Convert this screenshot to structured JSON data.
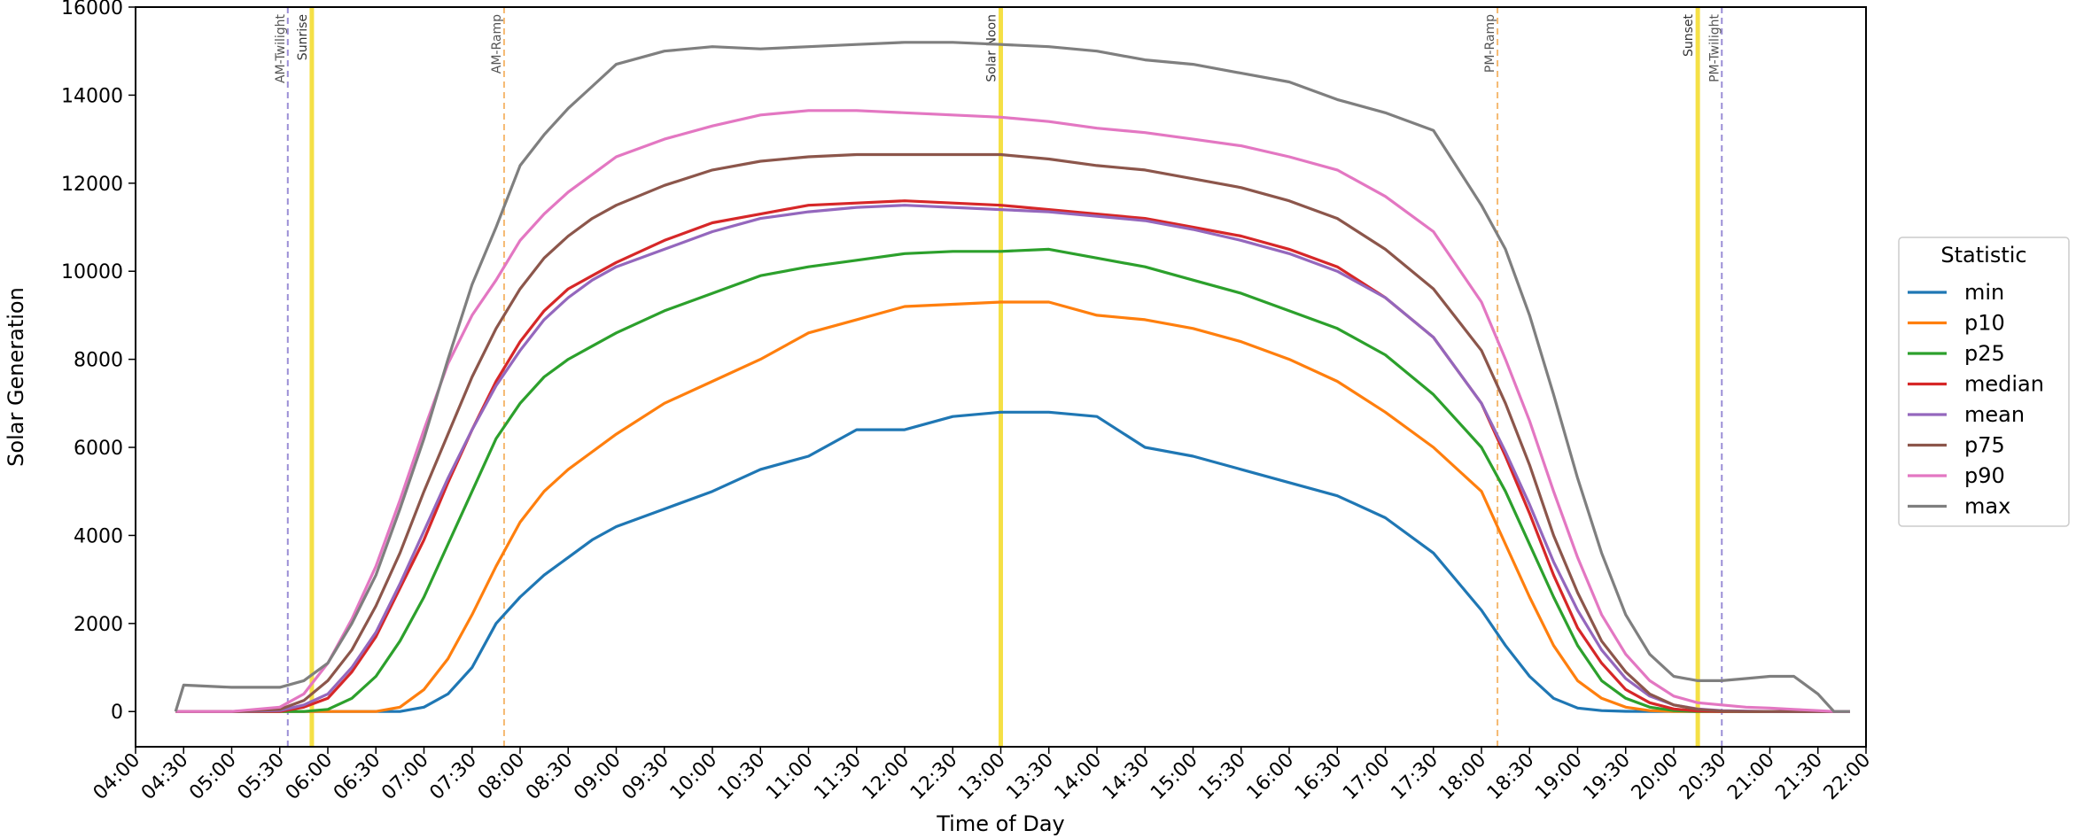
{
  "chart_data": {
    "type": "line",
    "title": "",
    "xlabel": "Time of Day",
    "ylabel": "Solar Generation",
    "xlim": [
      "04:00",
      "22:00"
    ],
    "ylim": [
      -800,
      16000
    ],
    "x_tick_labels": [
      "04:00",
      "04:30",
      "05:00",
      "05:30",
      "06:00",
      "06:30",
      "07:00",
      "07:30",
      "08:00",
      "08:30",
      "09:00",
      "09:30",
      "10:00",
      "10:30",
      "11:00",
      "11:30",
      "12:00",
      "12:30",
      "13:00",
      "13:30",
      "14:00",
      "14:30",
      "15:00",
      "15:30",
      "16:00",
      "16:30",
      "17:00",
      "17:30",
      "18:00",
      "18:30",
      "19:00",
      "19:30",
      "20:00",
      "20:30",
      "21:00",
      "21:30",
      "22:00"
    ],
    "y_ticks": [
      0,
      2000,
      4000,
      6000,
      8000,
      10000,
      12000,
      14000,
      16000
    ],
    "y_tick_labels": [
      "0",
      "2000",
      "4000",
      "6000",
      "8000",
      "10000",
      "12000",
      "14000",
      "16000"
    ],
    "grid": false,
    "legend": {
      "title": "Statistic",
      "position": "right"
    },
    "x": [
      "04:25",
      "04:30",
      "05:00",
      "05:30",
      "05:45",
      "06:00",
      "06:15",
      "06:30",
      "06:45",
      "07:00",
      "07:15",
      "07:30",
      "07:45",
      "08:00",
      "08:15",
      "08:30",
      "08:45",
      "09:00",
      "09:30",
      "10:00",
      "10:30",
      "11:00",
      "11:30",
      "12:00",
      "12:30",
      "13:00",
      "13:30",
      "14:00",
      "14:30",
      "15:00",
      "15:30",
      "16:00",
      "16:30",
      "17:00",
      "17:30",
      "18:00",
      "18:15",
      "18:30",
      "18:45",
      "19:00",
      "19:15",
      "19:30",
      "19:45",
      "20:00",
      "20:15",
      "20:30",
      "20:45",
      "21:00",
      "21:15",
      "21:30",
      "21:40",
      "21:50"
    ],
    "series": [
      {
        "name": "min",
        "color": "#1f77b4",
        "values": [
          0,
          0,
          0,
          0,
          0,
          0,
          0,
          0,
          0,
          100,
          400,
          1000,
          2000,
          2600,
          3100,
          3500,
          3900,
          4200,
          4600,
          5000,
          5500,
          5800,
          6400,
          6400,
          6700,
          6800,
          6800,
          6700,
          6000,
          5800,
          5500,
          5200,
          4900,
          4400,
          3600,
          2300,
          1500,
          800,
          300,
          80,
          20,
          5,
          0,
          0,
          0,
          0,
          0,
          0,
          0,
          0,
          0,
          0
        ]
      },
      {
        "name": "p10",
        "color": "#ff7f0e",
        "values": [
          0,
          0,
          0,
          0,
          0,
          0,
          0,
          0,
          100,
          500,
          1200,
          2200,
          3300,
          4300,
          5000,
          5500,
          5900,
          6300,
          7000,
          7500,
          8000,
          8600,
          8900,
          9200,
          9250,
          9300,
          9300,
          9000,
          8900,
          8700,
          8400,
          8000,
          7500,
          6800,
          6000,
          5000,
          3800,
          2600,
          1500,
          700,
          300,
          100,
          20,
          0,
          0,
          0,
          0,
          0,
          0,
          0,
          0,
          0
        ]
      },
      {
        "name": "p25",
        "color": "#2ca02c",
        "values": [
          0,
          0,
          0,
          0,
          0,
          50,
          300,
          800,
          1600,
          2600,
          3800,
          5000,
          6200,
          7000,
          7600,
          8000,
          8300,
          8600,
          9100,
          9500,
          9900,
          10100,
          10250,
          10400,
          10450,
          10450,
          10500,
          10300,
          10100,
          9800,
          9500,
          9100,
          8700,
          8100,
          7200,
          6000,
          5000,
          3800,
          2600,
          1500,
          700,
          300,
          100,
          20,
          0,
          0,
          0,
          0,
          0,
          0,
          0,
          0
        ]
      },
      {
        "name": "median",
        "color": "#d62728",
        "values": [
          0,
          0,
          0,
          0,
          100,
          300,
          900,
          1700,
          2800,
          3900,
          5200,
          6400,
          7500,
          8400,
          9100,
          9600,
          9900,
          10200,
          10700,
          11100,
          11300,
          11500,
          11550,
          11600,
          11550,
          11500,
          11400,
          11300,
          11200,
          11000,
          10800,
          10500,
          10100,
          9400,
          8500,
          7000,
          5800,
          4500,
          3100,
          1900,
          1100,
          500,
          200,
          60,
          10,
          0,
          0,
          0,
          0,
          0,
          0,
          0
        ]
      },
      {
        "name": "mean",
        "color": "#9467bd",
        "values": [
          0,
          0,
          0,
          20,
          150,
          400,
          1000,
          1800,
          2900,
          4100,
          5300,
          6400,
          7400,
          8200,
          8900,
          9400,
          9800,
          10100,
          10500,
          10900,
          11200,
          11350,
          11450,
          11500,
          11450,
          11400,
          11350,
          11250,
          11150,
          10950,
          10700,
          10400,
          10000,
          9400,
          8500,
          7000,
          5900,
          4700,
          3400,
          2300,
          1400,
          750,
          350,
          150,
          60,
          20,
          10,
          0,
          0,
          0,
          0,
          0
        ]
      },
      {
        "name": "p75",
        "color": "#8c564b",
        "values": [
          0,
          0,
          0,
          50,
          250,
          700,
          1400,
          2400,
          3600,
          5000,
          6300,
          7600,
          8700,
          9600,
          10300,
          10800,
          11200,
          11500,
          11950,
          12300,
          12500,
          12600,
          12650,
          12650,
          12650,
          12650,
          12550,
          12400,
          12300,
          12100,
          11900,
          11600,
          11200,
          10500,
          9600,
          8200,
          7000,
          5600,
          4000,
          2700,
          1600,
          900,
          400,
          150,
          50,
          10,
          0,
          0,
          0,
          0,
          0,
          0
        ]
      },
      {
        "name": "p90",
        "color": "#e377c2",
        "values": [
          0,
          0,
          0,
          100,
          400,
          1100,
          2100,
          3300,
          4800,
          6400,
          7900,
          9000,
          9800,
          10700,
          11300,
          11800,
          12200,
          12600,
          13000,
          13300,
          13550,
          13650,
          13650,
          13600,
          13550,
          13500,
          13400,
          13250,
          13150,
          13000,
          12850,
          12600,
          12300,
          11700,
          10900,
          9300,
          8000,
          6600,
          5000,
          3500,
          2200,
          1300,
          700,
          350,
          200,
          150,
          100,
          80,
          50,
          20,
          0,
          0
        ]
      },
      {
        "name": "max",
        "color": "#7f7f7f",
        "values": [
          0,
          600,
          550,
          550,
          700,
          1100,
          2000,
          3100,
          4600,
          6200,
          8000,
          9700,
          11000,
          12400,
          13100,
          13700,
          14200,
          14700,
          15000,
          15100,
          15050,
          15100,
          15150,
          15200,
          15200,
          15150,
          15100,
          15000,
          14800,
          14700,
          14500,
          14300,
          13900,
          13600,
          13200,
          11500,
          10500,
          9000,
          7200,
          5300,
          3600,
          2200,
          1300,
          800,
          700,
          700,
          750,
          800,
          800,
          400,
          0,
          0
        ]
      }
    ],
    "reference_lines": [
      {
        "label": "AM-Twilight",
        "time": "05:35",
        "color": "#9b8fd6",
        "style": "dashed"
      },
      {
        "label": "Sunrise",
        "time": "05:50",
        "color": "#f5e046",
        "style": "solid"
      },
      {
        "label": "AM-Ramp",
        "time": "07:50",
        "color": "#f5b971",
        "style": "dashed"
      },
      {
        "label": "Solar Noon",
        "time": "13:00",
        "color": "#f5e046",
        "style": "solid"
      },
      {
        "label": "PM-Ramp",
        "time": "18:10",
        "color": "#f5b971",
        "style": "dashed"
      },
      {
        "label": "Sunset",
        "time": "20:15",
        "color": "#f5e046",
        "style": "solid"
      },
      {
        "label": "PM-Twilight",
        "time": "20:30",
        "color": "#9b8fd6",
        "style": "dashed"
      }
    ]
  }
}
